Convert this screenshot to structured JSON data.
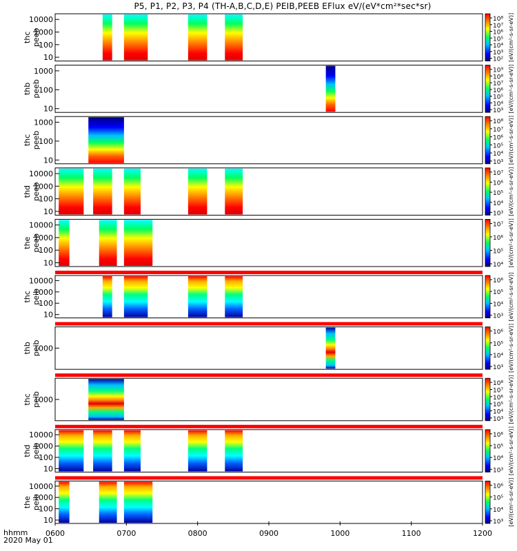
{
  "title": "P5, P1, P2, P3, P4 (TH-A,B,C,D,E) PEIB,PEEB EFlux eV/(eV*cm²*sec*sr)",
  "bottom_label": {
    "unit": "hhmm",
    "date": "2020 May 01"
  },
  "colorbar_label": "[eV/(cm²-s-sr-eV)]",
  "colors": {
    "red": "#ff0000",
    "orange": "#ff8000",
    "yellow": "#ffff00",
    "green": "#00ff00",
    "cyan": "#00ffff",
    "blue": "#0000ff",
    "navy": "#000080"
  },
  "chart_data": {
    "type": "heatmap",
    "x_ticks": [
      "0600",
      "0700",
      "0800",
      "0900",
      "1000",
      "1100",
      "1200"
    ],
    "xlim": [
      "0600",
      "1200"
    ],
    "panels": [
      {
        "name": "thc peeb",
        "ylabel": [
          "thc",
          "peeb"
        ],
        "y_ticks": [
          "10000",
          "1000",
          "100",
          "10"
        ],
        "blocks": [
          [
            "0640",
            "0648"
          ],
          [
            "0658",
            "0718"
          ],
          [
            "0752",
            "0808"
          ],
          [
            "0823",
            "0838"
          ]
        ],
        "scheme": "hot",
        "cbar_ticks": [
          "10⁸",
          "10⁷",
          "10⁶",
          "10⁵",
          "10⁴",
          "10³",
          "10²"
        ],
        "top_bar": false
      },
      {
        "name": "thb peeb",
        "ylabel": [
          "thb",
          "peeb"
        ],
        "y_ticks": [
          "1000",
          "100",
          "10"
        ],
        "blocks": [
          [
            "0948",
            "0956"
          ]
        ],
        "scheme": "blue_top",
        "cbar_ticks": [
          "10⁹",
          "10⁸",
          "10⁷",
          "10⁶",
          "10⁵",
          "10⁴",
          "10³"
        ],
        "top_bar": false
      },
      {
        "name": "thc peeb 2",
        "ylabel": [
          "thc",
          "peeb"
        ],
        "y_ticks": [
          "1000",
          "100",
          "10"
        ],
        "blocks": [
          [
            "0628",
            "0658"
          ]
        ],
        "scheme": "blue_top",
        "cbar_ticks": [
          "10⁸",
          "10⁷",
          "10⁶",
          "10⁵",
          "10⁴",
          "10³"
        ],
        "top_bar": false
      },
      {
        "name": "thd peeb",
        "ylabel": [
          "thd",
          "peeb"
        ],
        "y_ticks": [
          "10000",
          "1000",
          "100",
          "10"
        ],
        "blocks": [
          [
            "0603",
            "0624"
          ],
          [
            "0632",
            "0648"
          ],
          [
            "0658",
            "0712"
          ],
          [
            "0752",
            "0808"
          ],
          [
            "0823",
            "0838"
          ]
        ],
        "scheme": "hot",
        "cbar_ticks": [
          "10⁷",
          "10⁶",
          "10⁵",
          "10⁴",
          "10³"
        ],
        "top_bar": false
      },
      {
        "name": "the peeb",
        "ylabel": [
          "the",
          "peeb"
        ],
        "y_ticks": [
          "10000",
          "1000",
          "100",
          "10"
        ],
        "blocks": [
          [
            "0603",
            "0612"
          ],
          [
            "0637",
            "0652"
          ],
          [
            "0658",
            "0722"
          ]
        ],
        "scheme": "hot",
        "cbar_ticks": [
          "10⁷",
          "10⁶",
          "10⁵",
          "10⁴"
        ],
        "top_bar": false
      },
      {
        "name": "thc peib",
        "ylabel": [
          "thc",
          "peib"
        ],
        "y_ticks": [
          "10000",
          "1000",
          "100",
          "10"
        ],
        "blocks": [
          [
            "0640",
            "0648"
          ],
          [
            "0658",
            "0718"
          ],
          [
            "0752",
            "0808"
          ],
          [
            "0823",
            "0838"
          ]
        ],
        "scheme": "cool",
        "cbar_ticks": [
          "10⁶",
          "10⁵",
          "10⁴",
          "10³"
        ],
        "top_bar": true
      },
      {
        "name": "thb peib",
        "ylabel": [
          "thb",
          "peib"
        ],
        "y_ticks": [
          "1000"
        ],
        "blocks": [
          [
            "0948",
            "0956"
          ]
        ],
        "scheme": "ion",
        "cbar_ticks": [
          "10⁶",
          "10⁵",
          "10⁴",
          "10³"
        ],
        "top_bar": true
      },
      {
        "name": "thc peib 2",
        "ylabel": [
          "thc",
          "peib"
        ],
        "y_ticks": [
          "1000"
        ],
        "blocks": [
          [
            "0628",
            "0658"
          ]
        ],
        "scheme": "ion",
        "cbar_ticks": [
          "10⁸",
          "10⁷",
          "10⁶",
          "10⁵",
          "10⁴",
          "10³"
        ],
        "top_bar": true
      },
      {
        "name": "thd peib",
        "ylabel": [
          "thd",
          "peib"
        ],
        "y_ticks": [
          "10000",
          "1000",
          "100",
          "10"
        ],
        "blocks": [
          [
            "0603",
            "0624"
          ],
          [
            "0632",
            "0648"
          ],
          [
            "0658",
            "0712"
          ],
          [
            "0752",
            "0808"
          ],
          [
            "0823",
            "0838"
          ]
        ],
        "scheme": "cool",
        "cbar_ticks": [
          "10⁶",
          "10⁵",
          "10⁴",
          "10³"
        ],
        "top_bar": true
      },
      {
        "name": "the peib",
        "ylabel": [
          "the",
          "peib"
        ],
        "y_ticks": [
          "10000",
          "1000",
          "100",
          "10"
        ],
        "blocks": [
          [
            "0603",
            "0612"
          ],
          [
            "0637",
            "0652"
          ],
          [
            "0658",
            "0722"
          ]
        ],
        "scheme": "cool",
        "cbar_ticks": [
          "10⁶",
          "10⁵",
          "10⁴",
          "10³"
        ],
        "top_bar": true
      }
    ]
  }
}
